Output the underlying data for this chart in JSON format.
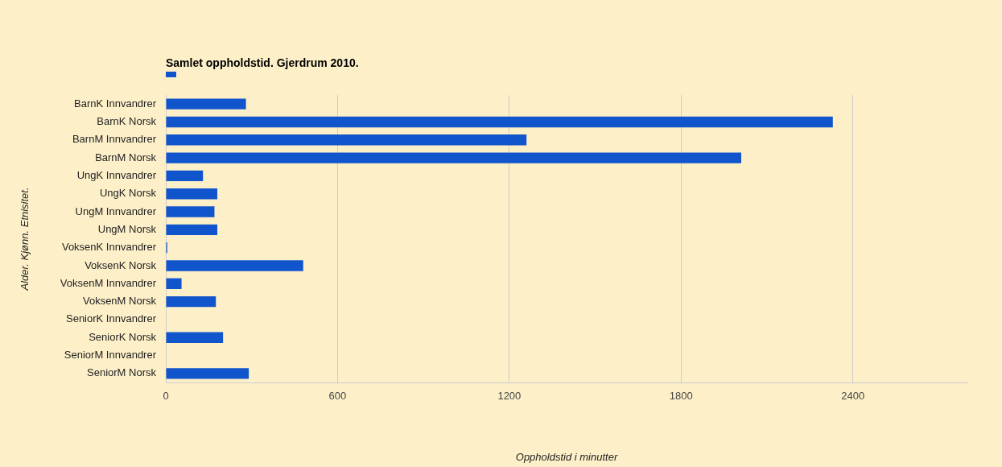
{
  "chart_data": {
    "type": "bar",
    "orientation": "horizontal",
    "title": "Samlet oppholdstid. Gjerdrum 2010.",
    "xlabel": "Oppholdstid i minutter",
    "ylabel": "Alder. Kjønn. Etnisitet.",
    "categories": [
      "BarnK Innvandrer",
      "BarnK Norsk",
      "BarnM Innvandrer",
      "BarnM Norsk",
      "UngK Innvandrer",
      "UngK Norsk",
      "UngM Innvandrer",
      "UngM Norsk",
      "VoksenK Innvandrer",
      "VoksenK Norsk",
      "VoksenM Innvandrer",
      "VoksenM Norsk",
      "SeniorK Innvandrer",
      "SeniorK Norsk",
      "SeniorM Innvandrer",
      "SeniorM Norsk"
    ],
    "values": [
      280,
      2330,
      1260,
      2010,
      130,
      180,
      170,
      180,
      5,
      480,
      55,
      175,
      0,
      200,
      0,
      290
    ],
    "color": "#1155cc",
    "xlim": [
      0,
      2800
    ],
    "xticks": [
      0,
      600,
      1200,
      1800,
      2400
    ],
    "grid": "x"
  }
}
